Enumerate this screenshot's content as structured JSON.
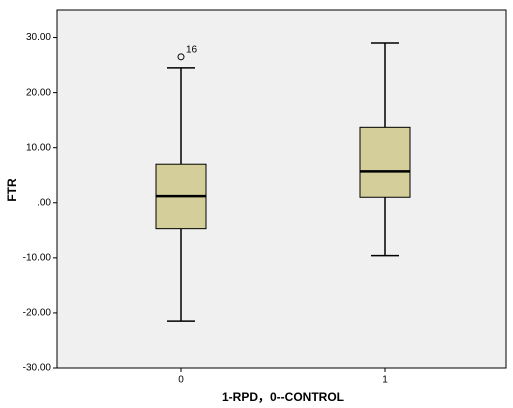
{
  "chart_data": {
    "type": "boxplot",
    "y_label": "FTR",
    "x_label": "1-RPD，0--CONTROL",
    "categories": [
      "0",
      "1"
    ],
    "color": "#d4cf9a",
    "boxes": [
      {
        "min": -21.5,
        "q1": -4.7,
        "median": 1.2,
        "q3": 7.0,
        "max": 24.5,
        "outliers": [
          {
            "value": 26.5,
            "label": "16"
          }
        ]
      },
      {
        "min": -9.6,
        "q1": 1.0,
        "median": 5.7,
        "q3": 13.7,
        "max": 29.0,
        "outliers": []
      }
    ],
    "ylim": [
      -30,
      35
    ],
    "yticks": [
      {
        "value": 30,
        "label": "30.00"
      },
      {
        "value": 20,
        "label": "20.00"
      },
      {
        "value": 10,
        "label": "10.00"
      },
      {
        "value": 0,
        "label": ".00"
      },
      {
        "value": -10,
        "label": "-10.00"
      },
      {
        "value": -20,
        "label": "-20.00"
      },
      {
        "value": -30,
        "label": "-30.00"
      }
    ]
  }
}
